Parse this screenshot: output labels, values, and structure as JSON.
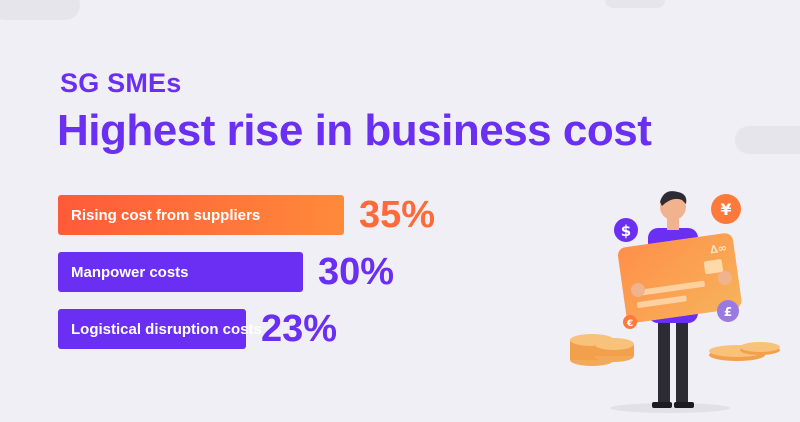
{
  "header": {
    "subtitle": "SG SMEs",
    "title": "Highest rise in business cost"
  },
  "chart_data": {
    "type": "bar",
    "orientation": "horizontal",
    "title": "Highest rise in business cost",
    "subtitle": "SG SMEs",
    "categories": [
      "Rising cost from suppliers",
      "Manpower costs",
      "Logistical disruption costs"
    ],
    "values": [
      35,
      30,
      23
    ],
    "value_labels": [
      "35%",
      "30%",
      "23%"
    ],
    "unit": "%",
    "colors": [
      "#ff6a3a",
      "#6a2ff2",
      "#6a2ff2"
    ],
    "highlight_gradient": [
      "#ff5a3a",
      "#ff8a3a"
    ],
    "grid": false,
    "legend": "none"
  },
  "illustration": {
    "icons": [
      "dollar-coin-icon",
      "yen-coin-icon",
      "euro-coin-icon",
      "pound-coin-icon",
      "credit-card-icon",
      "coin-stack-icon"
    ],
    "dollar_symbol": "$",
    "yen_symbol": "¥",
    "euro_symbol": "€",
    "pound_symbol": "£"
  }
}
